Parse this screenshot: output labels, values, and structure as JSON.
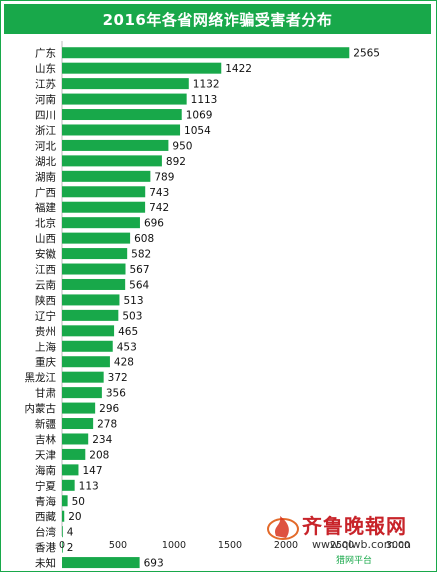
{
  "chart_data": {
    "type": "bar",
    "orientation": "horizontal",
    "title": "2016年各省网络诈骗受害者分布",
    "categories": [
      "广东",
      "山东",
      "江苏",
      "河南",
      "四川",
      "浙江",
      "河北",
      "湖北",
      "湖南",
      "广西",
      "福建",
      "北京",
      "山西",
      "安徽",
      "江西",
      "云南",
      "陕西",
      "辽宁",
      "贵州",
      "上海",
      "重庆",
      "黑龙江",
      "甘肃",
      "内蒙古",
      "新疆",
      "吉林",
      "天津",
      "海南",
      "宁夏",
      "青海",
      "西藏",
      "台湾",
      "香港",
      "未知"
    ],
    "values": [
      2565,
      1422,
      1132,
      1113,
      1069,
      1054,
      950,
      892,
      789,
      743,
      742,
      696,
      608,
      582,
      567,
      564,
      513,
      503,
      465,
      453,
      428,
      372,
      356,
      296,
      278,
      234,
      208,
      147,
      113,
      50,
      20,
      4,
      2,
      693
    ],
    "xlim": [
      0,
      3000
    ],
    "xticks": [
      "0",
      "500",
      "1000",
      "1500",
      "2000",
      "2500",
      "3000"
    ],
    "bar_color": "#18a84a",
    "grid": false
  },
  "watermark": {
    "logo_text": "齐鲁晚報网",
    "url": "www.qlwb.com.cn",
    "sub": "猎网平台"
  }
}
